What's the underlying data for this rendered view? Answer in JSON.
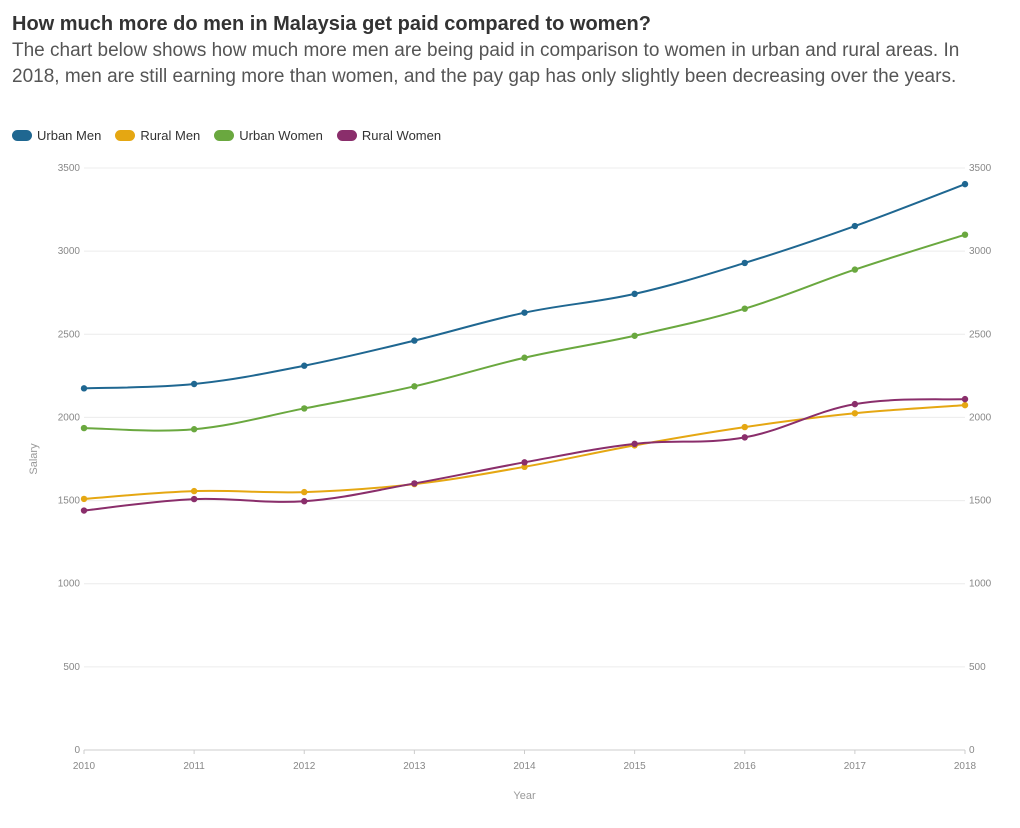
{
  "header": {
    "title": "How much more do men in Malaysia get paid compared to women?",
    "subtitle": "The chart below shows how much more men are being paid in comparison to women in urban and rural areas. In 2018, men are still earning more than women, and the pay gap has only slightly been decreasing over the years."
  },
  "chart_data": {
    "type": "line",
    "x": [
      "2010",
      "2011",
      "2012",
      "2013",
      "2014",
      "2015",
      "2016",
      "2017",
      "2018"
    ],
    "xlabel": "Year",
    "ylabel": "Salary",
    "ylim": [
      0,
      3500
    ],
    "yticks": [
      "0",
      "500",
      "1000",
      "1500",
      "2000",
      "2500",
      "3000",
      "3500"
    ],
    "grid": true,
    "legend_position": "top-left",
    "series": [
      {
        "name": "Urban Men",
        "color": "#1f6791",
        "values": [
          2175,
          2201,
          2311,
          2462,
          2630,
          2743,
          2929,
          3151,
          3403
        ]
      },
      {
        "name": "Rural Men",
        "color": "#e5a712",
        "values": [
          1510,
          1557,
          1551,
          1599,
          1703,
          1832,
          1942,
          2025,
          2074
        ]
      },
      {
        "name": "Urban Women",
        "color": "#6aa83f",
        "values": [
          1936,
          1929,
          2054,
          2187,
          2359,
          2491,
          2654,
          2889,
          3099
        ]
      },
      {
        "name": "Rural Women",
        "color": "#8a2e6b",
        "values": [
          1440,
          1509,
          1496,
          1603,
          1730,
          1841,
          1880,
          2080,
          2110
        ]
      }
    ]
  }
}
